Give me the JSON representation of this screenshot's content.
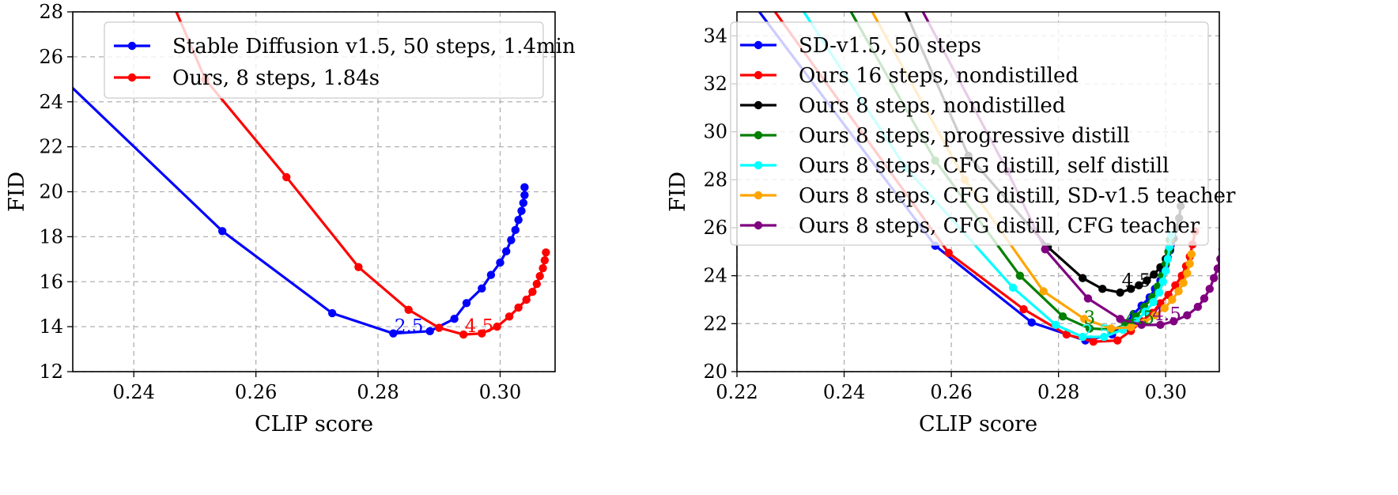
{
  "chart_data": [
    {
      "type": "line",
      "xlabel": "CLIP score",
      "ylabel": "FID",
      "xlim": [
        0.23,
        0.309
      ],
      "ylim": [
        12,
        28
      ],
      "xticks": [
        "0.24",
        "0.26",
        "0.28",
        "0.30"
      ],
      "yticks": [
        "12",
        "14",
        "16",
        "18",
        "20",
        "22",
        "24",
        "26",
        "28"
      ],
      "grid": true,
      "legend_position": "top-right",
      "series": [
        {
          "name": "Stable Diffusion v1.5, 50 steps, 1.4min",
          "color": "#0000ff",
          "points": [
            [
              0.215,
              28.5
            ],
            [
              0.2545,
              18.25
            ],
            [
              0.2725,
              14.6
            ],
            [
              0.2825,
              13.7
            ],
            [
              0.2885,
              13.8
            ],
            [
              0.2925,
              14.35
            ],
            [
              0.2945,
              15.05
            ],
            [
              0.297,
              15.7
            ],
            [
              0.2985,
              16.3
            ],
            [
              0.3,
              16.85
            ],
            [
              0.301,
              17.35
            ],
            [
              0.3018,
              17.85
            ],
            [
              0.3025,
              18.3
            ],
            [
              0.303,
              18.75
            ],
            [
              0.3035,
              19.15
            ],
            [
              0.3038,
              19.5
            ],
            [
              0.304,
              19.85
            ],
            [
              0.304,
              20.2
            ]
          ]
        },
        {
          "name": "Ours, 8 steps, 1.84s",
          "color": "#ff0000",
          "points": [
            [
              0.2465,
              28.3
            ],
            [
              0.2517,
              25.0
            ],
            [
              0.265,
              20.65
            ],
            [
              0.2768,
              16.65
            ],
            [
              0.285,
              14.75
            ],
            [
              0.29,
              13.95
            ],
            [
              0.294,
              13.65
            ],
            [
              0.297,
              13.7
            ],
            [
              0.2995,
              14.0
            ],
            [
              0.3015,
              14.45
            ],
            [
              0.303,
              14.85
            ],
            [
              0.3043,
              15.2
            ],
            [
              0.3053,
              15.55
            ],
            [
              0.306,
              15.9
            ],
            [
              0.3065,
              16.25
            ],
            [
              0.307,
              16.6
            ],
            [
              0.3073,
              16.95
            ],
            [
              0.3075,
              17.3
            ]
          ]
        }
      ],
      "annotations": [
        {
          "text": "2.5",
          "x": 0.2827,
          "y": 13.75,
          "color": "#0000ff"
        },
        {
          "text": "4.5",
          "x": 0.2942,
          "y": 13.75,
          "color": "#ff0000"
        }
      ]
    },
    {
      "type": "line",
      "xlabel": "CLIP score",
      "ylabel": "FID",
      "xlim": [
        0.22,
        0.31
      ],
      "ylim": [
        20,
        35
      ],
      "xticks": [
        "0.22",
        "0.24",
        "0.26",
        "0.28",
        "0.30"
      ],
      "yticks": [
        "20",
        "22",
        "24",
        "26",
        "28",
        "30",
        "32",
        "34"
      ],
      "grid": true,
      "legend_position": "top-left",
      "series": [
        {
          "name": "SD-v1.5, 50 steps",
          "color": "#0000ff",
          "points": [
            [
              0.2225,
              35.5
            ],
            [
              0.257,
              25.25
            ],
            [
              0.275,
              22.05
            ],
            [
              0.285,
              21.3
            ],
            [
              0.29,
              21.55
            ],
            [
              0.2925,
              22.0
            ],
            [
              0.294,
              22.4
            ],
            [
              0.2955,
              22.75
            ],
            [
              0.297,
              23.1
            ],
            [
              0.298,
              23.45
            ],
            [
              0.299,
              23.8
            ],
            [
              0.2995,
              24.15
            ],
            [
              0.3,
              24.45
            ],
            [
              0.3004,
              24.75
            ],
            [
              0.3008,
              25.05
            ],
            [
              0.301,
              25.3
            ]
          ]
        },
        {
          "name": "Ours 16 steps, nondistilled",
          "color": "#ff0000",
          "points": [
            [
              0.2255,
              35.5
            ],
            [
              0.2595,
              24.95
            ],
            [
              0.2735,
              22.6
            ],
            [
              0.2815,
              21.55
            ],
            [
              0.2865,
              21.25
            ],
            [
              0.291,
              21.3
            ],
            [
              0.2935,
              21.7
            ],
            [
              0.2955,
              22.1
            ],
            [
              0.2975,
              22.45
            ],
            [
              0.299,
              22.85
            ],
            [
              0.3005,
              23.2
            ],
            [
              0.3018,
              23.6
            ],
            [
              0.303,
              24.0
            ],
            [
              0.3038,
              24.4
            ],
            [
              0.3045,
              24.8
            ],
            [
              0.305,
              25.3
            ],
            [
              0.3055,
              25.85
            ]
          ]
        },
        {
          "name": "Ours 8 steps, nondistilled",
          "color": "#000000",
          "points": [
            [
              0.2505,
              35.5
            ],
            [
              0.2632,
              29.0
            ],
            [
              0.278,
              25.2
            ],
            [
              0.2845,
              23.9
            ],
            [
              0.2882,
              23.45
            ],
            [
              0.2915,
              23.3
            ],
            [
              0.2935,
              23.45
            ],
            [
              0.295,
              23.6
            ],
            [
              0.2965,
              23.8
            ],
            [
              0.2978,
              24.05
            ],
            [
              0.299,
              24.35
            ],
            [
              0.3,
              24.7
            ],
            [
              0.3008,
              25.1
            ],
            [
              0.3015,
              25.55
            ],
            [
              0.302,
              26.0
            ],
            [
              0.3025,
              26.4
            ],
            [
              0.3028,
              26.9
            ]
          ]
        },
        {
          "name": "Ours 8 steps, progressive distill",
          "color": "#008000",
          "points": [
            [
              0.24,
              35.5
            ],
            [
              0.257,
              28.8
            ],
            [
              0.2728,
              24.0
            ],
            [
              0.2808,
              22.3
            ],
            [
              0.2858,
              21.8
            ],
            [
              0.29,
              21.75
            ],
            [
              0.2925,
              21.95
            ],
            [
              0.2945,
              22.3
            ],
            [
              0.296,
              22.7
            ],
            [
              0.2975,
              23.1
            ],
            [
              0.2985,
              23.55
            ],
            [
              0.2993,
              24.0
            ],
            [
              0.3,
              24.5
            ],
            [
              0.3005,
              25.0
            ],
            [
              0.3008,
              25.5
            ]
          ]
        },
        {
          "name": "Ours 8 steps, CFG distill, self distill",
          "color": "#00ffff",
          "points": [
            [
              0.231,
              35.5
            ],
            [
              0.2515,
              28.5
            ],
            [
              0.2715,
              23.5
            ],
            [
              0.2795,
              21.95
            ],
            [
              0.2845,
              21.45
            ],
            [
              0.2885,
              21.45
            ],
            [
              0.292,
              21.75
            ],
            [
              0.2945,
              22.1
            ],
            [
              0.2962,
              22.5
            ],
            [
              0.2977,
              22.9
            ],
            [
              0.2988,
              23.3
            ],
            [
              0.2995,
              23.75
            ],
            [
              0.3,
              24.2
            ],
            [
              0.3004,
              24.7
            ],
            [
              0.3007,
              25.2
            ],
            [
              0.301,
              25.7
            ]
          ]
        },
        {
          "name": "Ours 8 steps, CFG distill, SD-v1.5 teacher",
          "color": "#ffa500",
          "points": [
            [
              0.244,
              35.5
            ],
            [
              0.2625,
              28.0
            ],
            [
              0.2772,
              23.35
            ],
            [
              0.2848,
              22.2
            ],
            [
              0.2898,
              21.8
            ],
            [
              0.2935,
              21.85
            ],
            [
              0.296,
              22.05
            ],
            [
              0.298,
              22.35
            ],
            [
              0.2998,
              22.65
            ],
            [
              0.3012,
              23.0
            ],
            [
              0.3024,
              23.35
            ],
            [
              0.3033,
              23.7
            ],
            [
              0.304,
              24.1
            ],
            [
              0.3045,
              24.5
            ],
            [
              0.3048,
              24.9
            ]
          ]
        },
        {
          "name": "Ours 8 steps, CFG distill, CFG teacher",
          "color": "#800080",
          "points": [
            [
              0.2535,
              35.5
            ],
            [
              0.2705,
              28.35
            ],
            [
              0.2775,
              25.1
            ],
            [
              0.2855,
              23.05
            ],
            [
              0.2915,
              22.2
            ],
            [
              0.2955,
              21.95
            ],
            [
              0.299,
              21.95
            ],
            [
              0.3015,
              22.1
            ],
            [
              0.304,
              22.35
            ],
            [
              0.306,
              22.7
            ],
            [
              0.3072,
              23.05
            ],
            [
              0.3082,
              23.45
            ],
            [
              0.309,
              23.9
            ],
            [
              0.3097,
              24.3
            ],
            [
              0.3102,
              24.7
            ],
            [
              0.3106,
              25.1
            ],
            [
              0.3108,
              25.4
            ]
          ]
        }
      ],
      "annotations": [
        {
          "text": "4.5",
          "x": 0.2918,
          "y": 23.55,
          "color": "#000000"
        },
        {
          "text": "3",
          "x": 0.2847,
          "y": 22.0,
          "color": "#008000"
        },
        {
          "text": "4.5",
          "x": 0.2925,
          "y": 22.0,
          "color": "#008000"
        },
        {
          "text": "4.5",
          "x": 0.2975,
          "y": 22.15,
          "color": "#800080"
        },
        {
          "text": "2.5",
          "x": 0.2843,
          "y": 21.4,
          "color": "#00ffff"
        }
      ]
    }
  ]
}
